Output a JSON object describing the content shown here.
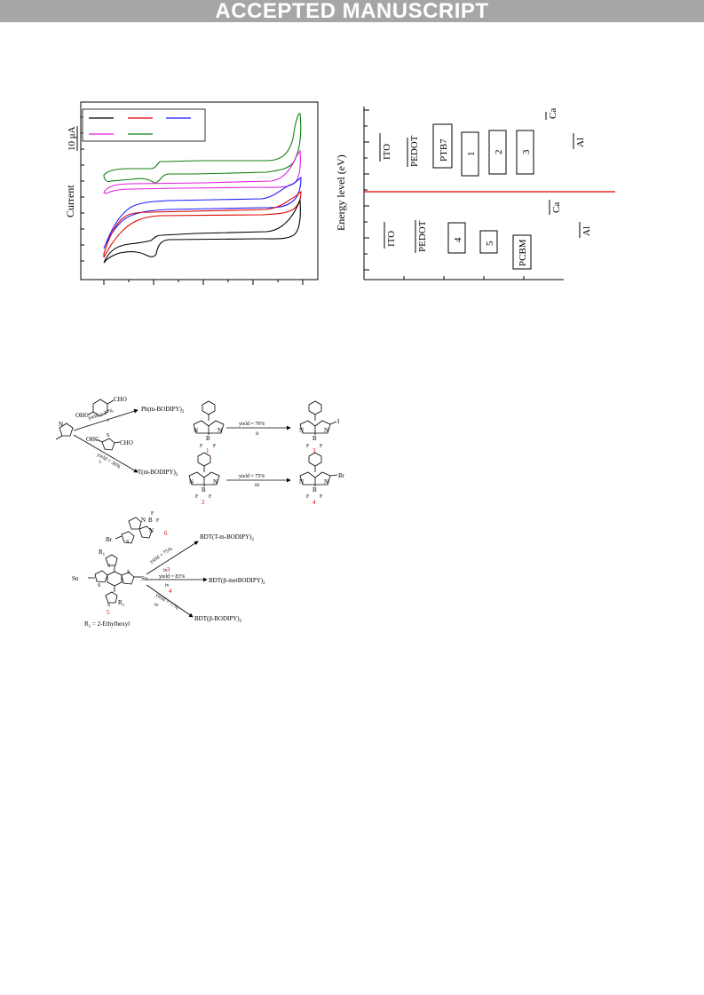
{
  "header": {
    "banner": "ACCEPTED MANUSCRIPT"
  },
  "chart_data": [
    {
      "type": "line",
      "title": "",
      "xlabel": "",
      "ylabel": "Current",
      "scale_label": "10 μA",
      "legend": {
        "position": "top-left",
        "entries": 5,
        "labels_visible": false
      },
      "x_axis": {
        "tick_count": 5,
        "tick_labels_visible": false
      },
      "series_colors": [
        "#000000",
        "#e00000",
        "#1a1aff",
        "#e020e0",
        "#108010"
      ],
      "series_count": 5
    },
    {
      "type": "diagram",
      "ylabel": "Energy level (eV)",
      "reference_line_color": "#e00000",
      "upper_levels": [
        "ITO",
        "PEDOT",
        "PTB7",
        "1",
        "2",
        "3",
        "Ca",
        "Al"
      ],
      "lower_levels": [
        "ITO",
        "PEDOT",
        "4",
        "5",
        "PCBM",
        "Ca",
        "Al"
      ]
    }
  ],
  "scheme": {
    "reagent_top": "CHO",
    "reagent_top_left": "OHC",
    "reagent_mid_left": "OHC",
    "reagent_mid_right": "CHO",
    "reagent_mid_s": "S",
    "arrow1_yield": "yield = 37%",
    "arrow1_step": "i",
    "arrow2_yield": "yield = 30%",
    "arrow2_step": "i",
    "product_ph": "Ph(m-BODIPY)",
    "product_ph_sub": "2",
    "product_t": "T(m-BODIPY)",
    "product_t_sub": "2",
    "arrow3_yield": "yield = 70%",
    "arrow3_step": "ii",
    "arrow4_yield": "yield = 75%",
    "arrow4_step": "iii",
    "cmpd1": "1",
    "cmpd2": "2",
    "cmpd3": "3",
    "cmpd4": "4",
    "iodo": "I",
    "bromo": "Br",
    "atom_n": "N",
    "atom_b": "B",
    "atom_f": "F",
    "atom_s": "S",
    "atom_sn": "Sn",
    "bdt_r1_top": "R",
    "bdt_r1_sub": "1",
    "bdt_cmpd": "5",
    "cmpd6": "6",
    "arrow5_yield": "yield = 75%",
    "arrow5_step": "iv",
    "arrow6_label_num": "3",
    "arrow6_yield": "yield = 83%",
    "arrow6_step": "iv",
    "arrow7_label_num": "4",
    "arrow7_yield": "yield = 77%",
    "arrow7_step": "iv",
    "prod5": "BDT(T-m-BODIPY)",
    "prod5_sub": "2",
    "prod6": "BDT(β-metBODIPY)",
    "prod6_sub": "2",
    "prod7": "BDT(β-BODIPY)",
    "prod7_sub": "2",
    "r1_def": "R",
    "r1_def_sub": "1",
    "r1_def_tail": " = 2-Ethylhexyl"
  }
}
